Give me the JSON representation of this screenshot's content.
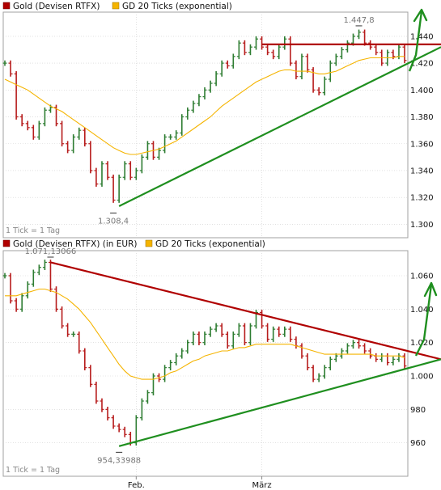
{
  "colors": {
    "price_up": "#2e7d32",
    "price_down": "#b71c1c",
    "ma": "#f5b400",
    "resistance": "#b00000",
    "support": "#1f8f1f",
    "grid": "#d0d0d0",
    "background": "#ffffff"
  },
  "chart_data": [
    {
      "type": "ohlc",
      "legend": [
        {
          "name": "Gold (Devisen RTFX)",
          "color": "#b00000"
        },
        {
          "name": "GD 20 Ticks (exponential)",
          "color": "#f5b400"
        }
      ],
      "y_ticks": [
        "1.300",
        "1.320",
        "1.340",
        "1.360",
        "1.380",
        "1.400",
        "1.420",
        "1.440"
      ],
      "ylim": [
        1.29,
        1.458
      ],
      "annotations": [
        {
          "text": "1.447,8",
          "x": 62,
          "y": 1.4478
        },
        {
          "text": "1.308,4",
          "x": 19,
          "y": 1.3084
        }
      ],
      "footer": "1 Tick = 1 Tag",
      "closes": [
        1.42,
        1.412,
        1.38,
        1.375,
        1.372,
        1.365,
        1.375,
        1.385,
        1.387,
        1.375,
        1.36,
        1.355,
        1.365,
        1.37,
        1.36,
        1.34,
        1.33,
        1.345,
        1.335,
        1.318,
        1.335,
        1.345,
        1.335,
        1.34,
        1.35,
        1.36,
        1.35,
        1.355,
        1.365,
        1.365,
        1.368,
        1.38,
        1.385,
        1.39,
        1.395,
        1.4,
        1.405,
        1.412,
        1.42,
        1.418,
        1.425,
        1.435,
        1.428,
        1.432,
        1.438,
        1.432,
        1.428,
        1.425,
        1.432,
        1.438,
        1.42,
        1.41,
        1.425,
        1.415,
        1.4,
        1.398,
        1.408,
        1.42,
        1.425,
        1.43,
        1.435,
        1.44,
        1.443,
        1.435,
        1.432,
        1.428,
        1.42,
        1.428,
        1.425,
        1.432,
        1.422
      ],
      "ma": [
        1.408,
        1.406,
        1.404,
        1.402,
        1.4,
        1.397,
        1.394,
        1.391,
        1.388,
        1.386,
        1.384,
        1.381,
        1.378,
        1.375,
        1.372,
        1.369,
        1.366,
        1.363,
        1.36,
        1.357,
        1.355,
        1.353,
        1.352,
        1.352,
        1.353,
        1.354,
        1.355,
        1.356,
        1.358,
        1.36,
        1.362,
        1.365,
        1.368,
        1.371,
        1.374,
        1.377,
        1.38,
        1.384,
        1.388,
        1.391,
        1.394,
        1.397,
        1.4,
        1.403,
        1.406,
        1.408,
        1.41,
        1.412,
        1.414,
        1.415,
        1.415,
        1.414,
        1.414,
        1.414,
        1.413,
        1.412,
        1.412,
        1.413,
        1.414,
        1.416,
        1.418,
        1.42,
        1.422,
        1.423,
        1.424,
        1.424,
        1.424,
        1.424,
        1.424,
        1.425,
        1.425
      ],
      "trendlines": [
        {
          "name": "resistance",
          "x": [
            45,
            75
          ],
          "y": [
            1.434,
            1.434
          ]
        },
        {
          "name": "support",
          "x": [
            20,
            75
          ],
          "y": [
            1.3135,
            1.432
          ]
        }
      ]
    },
    {
      "type": "ohlc",
      "legend": [
        {
          "name": "Gold (Devisen RTFX) (in EUR)",
          "color": "#b00000"
        },
        {
          "name": "GD 20 Ticks (exponential)",
          "color": "#f5b400"
        }
      ],
      "y_ticks": [
        "960",
        "980",
        "1.000",
        "1.020",
        "1.040",
        "1.060"
      ],
      "ylim": [
        940,
        1075
      ],
      "annotations": [
        {
          "text": "1.071,13066",
          "x": 8,
          "y": 1071.13
        },
        {
          "text": "954,33988",
          "x": 20,
          "y": 954.34
        }
      ],
      "footer": "1 Tick = 1 Tag",
      "x_ticks": [
        {
          "label": "Feb.",
          "x": 23
        },
        {
          "label": "März",
          "x": 45
        }
      ],
      "closes": [
        1060,
        1045,
        1040,
        1048,
        1055,
        1062,
        1065,
        1068,
        1052,
        1040,
        1030,
        1025,
        1025,
        1015,
        1005,
        995,
        985,
        980,
        975,
        970,
        968,
        965,
        960,
        975,
        985,
        990,
        1000,
        998,
        1005,
        1008,
        1012,
        1015,
        1020,
        1025,
        1020,
        1025,
        1028,
        1030,
        1025,
        1018,
        1025,
        1030,
        1020,
        1030,
        1038,
        1030,
        1022,
        1028,
        1025,
        1028,
        1022,
        1018,
        1012,
        1005,
        998,
        1000,
        1005,
        1010,
        1012,
        1015,
        1018,
        1020,
        1018,
        1015,
        1012,
        1010,
        1012,
        1008,
        1010,
        1012,
        1006
      ],
      "ma": [
        1048,
        1048,
        1048,
        1049,
        1050,
        1051,
        1052,
        1052,
        1051,
        1050,
        1048,
        1046,
        1043,
        1040,
        1036,
        1032,
        1027,
        1022,
        1017,
        1012,
        1007,
        1003,
        1000,
        999,
        998,
        998,
        998,
        999,
        1000,
        1002,
        1003,
        1005,
        1007,
        1009,
        1010,
        1012,
        1013,
        1014,
        1015,
        1015,
        1016,
        1017,
        1017,
        1018,
        1019,
        1019,
        1019,
        1019,
        1019,
        1019,
        1019,
        1018,
        1017,
        1016,
        1015,
        1014,
        1013,
        1013,
        1013,
        1013,
        1013,
        1013,
        1013,
        1013,
        1013,
        1012,
        1012,
        1012,
        1012,
        1012,
        1011
      ],
      "trendlines": [
        {
          "name": "resistance",
          "x": [
            8,
            79
          ],
          "y": [
            1068,
            1010
          ]
        },
        {
          "name": "support",
          "x": [
            20,
            79
          ],
          "y": [
            958,
            1010
          ]
        }
      ]
    }
  ]
}
